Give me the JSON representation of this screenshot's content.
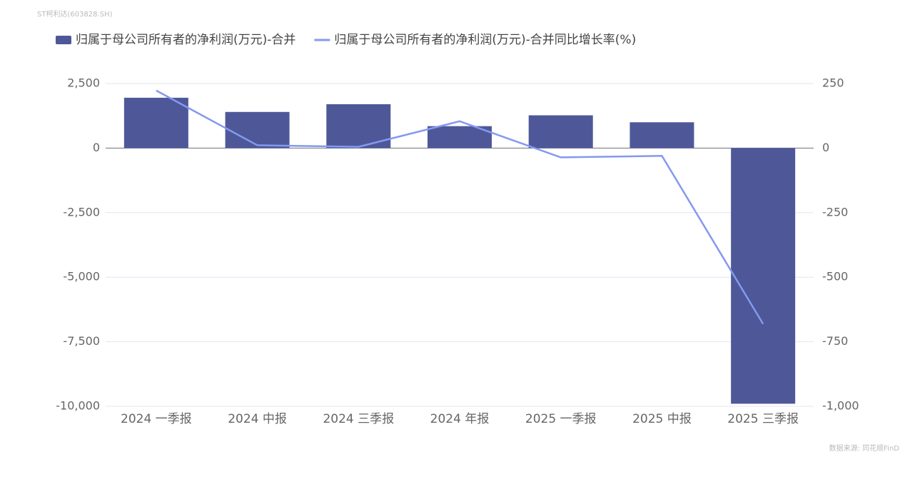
{
  "chart_data": {
    "type": "bar_line",
    "title": "ST柯利达(603828.SH)",
    "source": "数据来源: 同花顺FinD",
    "categories": [
      "2024 一季报",
      "2024 中报",
      "2024 三季报",
      "2024 年报",
      "2025 一季报",
      "2025 中报",
      "2025 三季报"
    ],
    "series": [
      {
        "name": "归属于母公司所有者的净利润(万元)-合并",
        "type": "bar",
        "color": "#4e5899",
        "values": [
          1950,
          1400,
          1700,
          850,
          1270,
          1000,
          -9900
        ]
      },
      {
        "name": "归属于母公司所有者的净利润(万元)-合并同比增长率(%)",
        "type": "line",
        "axis": "y2",
        "color": "#8499ef",
        "values": [
          223,
          11,
          5,
          104,
          -36,
          -30,
          -681
        ]
      }
    ],
    "ylim": [
      -10000,
      2500
    ],
    "yticks": [
      {
        "value": 2500,
        "label": "2,500"
      },
      0,
      {
        "value": -2500,
        "label": "-2,500"
      },
      {
        "value": -5000,
        "label": "-5,000"
      },
      {
        "value": -7500,
        "label": "-7,500"
      },
      {
        "value": -10000,
        "label": "-10,000"
      }
    ],
    "y2lim": [
      -1000,
      250
    ],
    "y2ticks": [
      250,
      0,
      -250,
      -500,
      -750,
      {
        "value": -1000,
        "label": "-1,000"
      }
    ],
    "grid": true,
    "legend": "top"
  }
}
